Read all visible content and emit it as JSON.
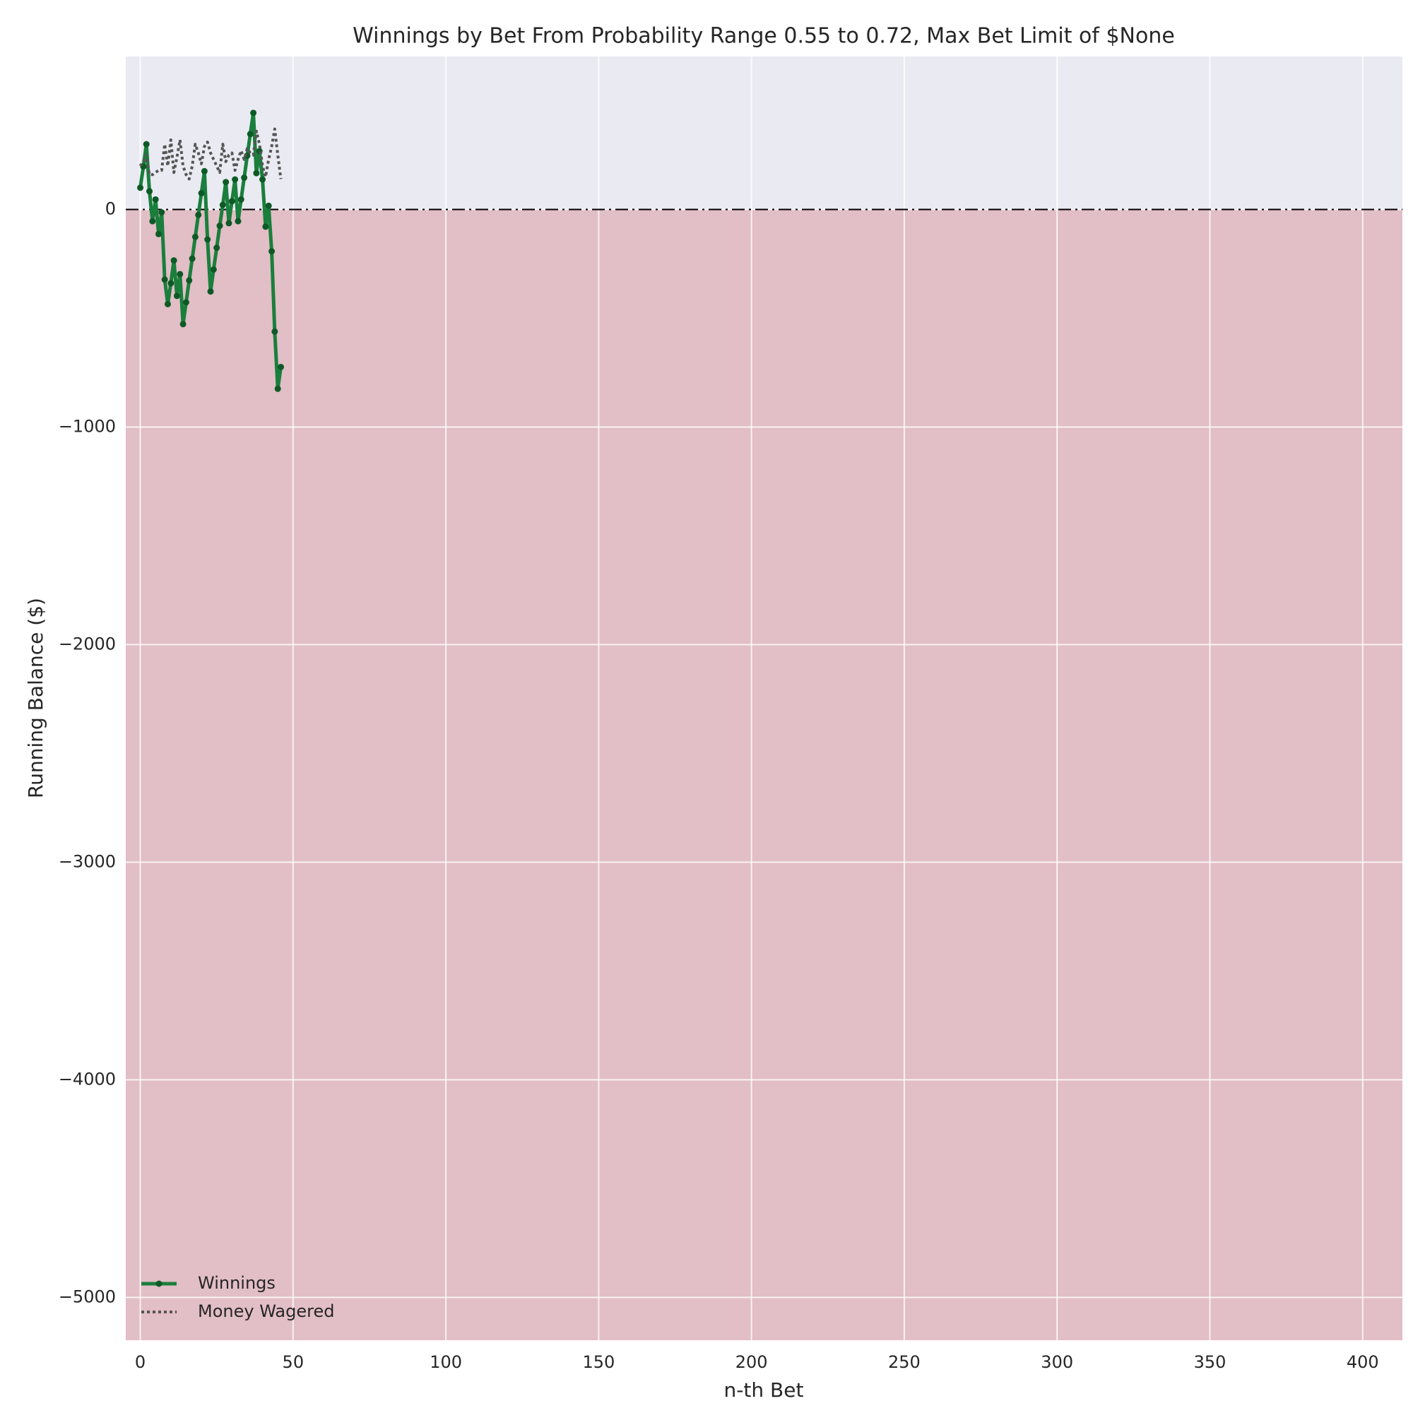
{
  "chart_data": {
    "type": "line",
    "title": "Winnings by Bet From Probability Range 0.55 to 0.72, Max Bet Limit of $None",
    "x_label": "n-th Bet",
    "y_label": "Running Balance ($)",
    "x": [
      0,
      1,
      2,
      3,
      4,
      5,
      6,
      7,
      8,
      9,
      10,
      11,
      12,
      13,
      14,
      15,
      16,
      17,
      18,
      19,
      20,
      21,
      22,
      23,
      24,
      25,
      26,
      27,
      28,
      29,
      30,
      31,
      32,
      33,
      34,
      35,
      36,
      37,
      38,
      39,
      40,
      41,
      42,
      43,
      44,
      45,
      46
    ],
    "series": [
      {
        "name": "Winnings",
        "color": "#1a7f3c",
        "marker_color": "#0d5a26",
        "style": "solid",
        "values": [
          100,
          197,
          300,
          84,
          -54,
          46,
          -113,
          -13,
          -322,
          -435,
          -339,
          -234,
          -397,
          -297,
          -527,
          -427,
          -326,
          -226,
          -126,
          -25,
          75,
          176,
          -138,
          -377,
          -276,
          -176,
          -75,
          21,
          126,
          -63,
          38,
          138,
          -54,
          46,
          146,
          247,
          347,
          444,
          167,
          268,
          138,
          -79,
          17,
          -192,
          -561,
          -824,
          -724
        ]
      },
      {
        "name": "Money Wagered",
        "color": "#555555",
        "style": "dotted",
        "values": [
          200,
          220,
          250,
          160,
          160,
          170,
          180,
          180,
          300,
          200,
          320,
          170,
          240,
          320,
          200,
          160,
          140,
          200,
          300,
          260,
          210,
          290,
          310,
          260,
          230,
          200,
          170,
          300,
          220,
          250,
          260,
          180,
          230,
          270,
          230,
          280,
          260,
          250,
          360,
          300,
          200,
          150,
          230,
          290,
          370,
          250,
          140
        ]
      }
    ],
    "xlim": [
      -4.75,
      413
    ],
    "ylim": [
      -5197,
      703
    ],
    "xticks": [
      0,
      50,
      100,
      150,
      200,
      250,
      300,
      350,
      400
    ],
    "yticks": [
      {
        "value": -5000,
        "label": "−5000"
      },
      {
        "value": -4000,
        "label": "−4000"
      },
      {
        "value": -3000,
        "label": "−3000"
      },
      {
        "value": -2000,
        "label": "−2000"
      },
      {
        "value": -1000,
        "label": "−1000"
      },
      0
    ],
    "reference_line": 0,
    "fill_above": "#eaeaf2",
    "fill_below": "#e2bec6",
    "grid": true,
    "legend": "lower left"
  }
}
